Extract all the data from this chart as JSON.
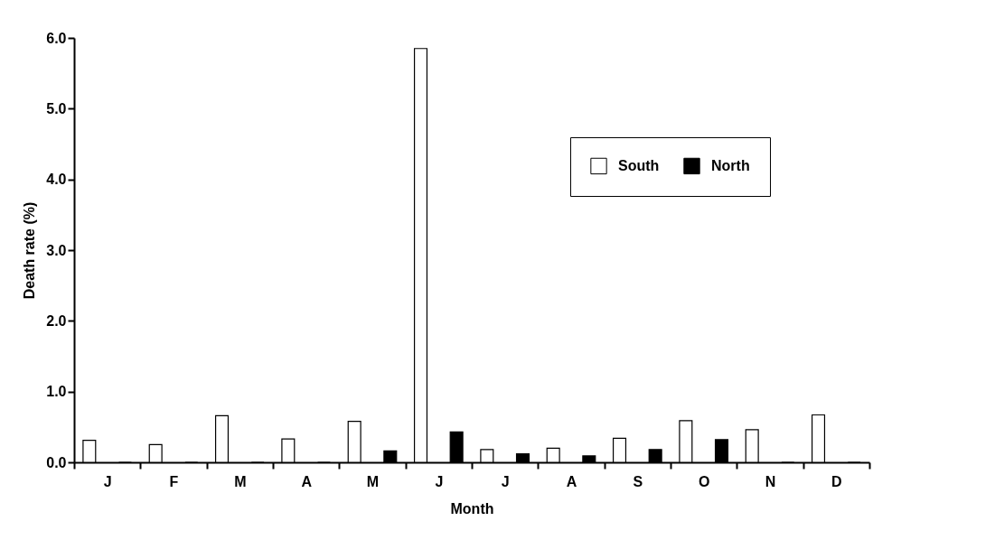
{
  "chart_data": {
    "type": "bar",
    "xlabel": "Month",
    "ylabel": "Death rate (%)",
    "categories": [
      "J",
      "F",
      "M",
      "A",
      "M",
      "J",
      "J",
      "A",
      "S",
      "O",
      "N",
      "D"
    ],
    "series": [
      {
        "name": "South",
        "color": "#ffffff",
        "values": [
          0.31,
          0.25,
          0.66,
          0.33,
          0.58,
          5.85,
          0.18,
          0.2,
          0.34,
          0.59,
          0.46,
          0.67
        ]
      },
      {
        "name": "North",
        "color": "#000000",
        "values": [
          0,
          0,
          0,
          0,
          0.16,
          0.43,
          0.12,
          0.09,
          0.18,
          0.32,
          0,
          0
        ]
      }
    ],
    "ylim": [
      0,
      6
    ],
    "yticks": [
      {
        "value": 0,
        "label": "0.0"
      },
      {
        "value": 1,
        "label": "1.0"
      },
      {
        "value": 2,
        "label": "2.0"
      },
      {
        "value": 3,
        "label": "3.0"
      },
      {
        "value": 4,
        "label": "4.0"
      },
      {
        "value": 5,
        "label": "5.0"
      },
      {
        "value": 6,
        "label": "6.0"
      }
    ],
    "grid": false,
    "legend": "top right"
  }
}
